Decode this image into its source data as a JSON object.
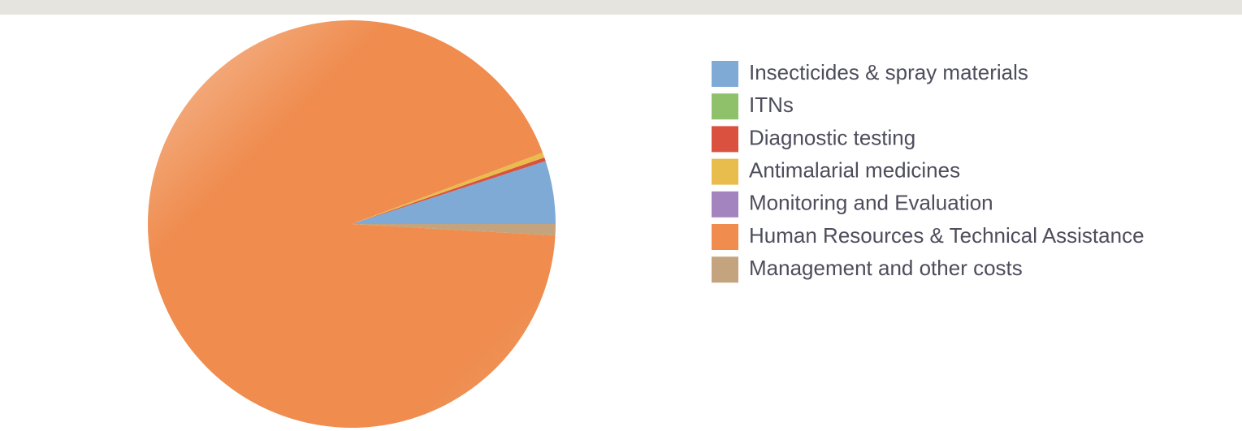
{
  "chart_data": {
    "type": "pie",
    "categories": [
      "Insecticides & spray materials",
      "ITNs",
      "Diagnostic testing",
      "Antimalarial medicines",
      "Monitoring and Evaluation",
      "Human Resources & Technical Assistance",
      "Management and other costs"
    ],
    "values": [
      5,
      0,
      0.3,
      0.4,
      0,
      93.4,
      0.9
    ],
    "colors": [
      "#7eaad5",
      "#8fc16a",
      "#db5140",
      "#e8bd4d",
      "#a484be",
      "#ef8c4e",
      "#c3a47e"
    ]
  }
}
